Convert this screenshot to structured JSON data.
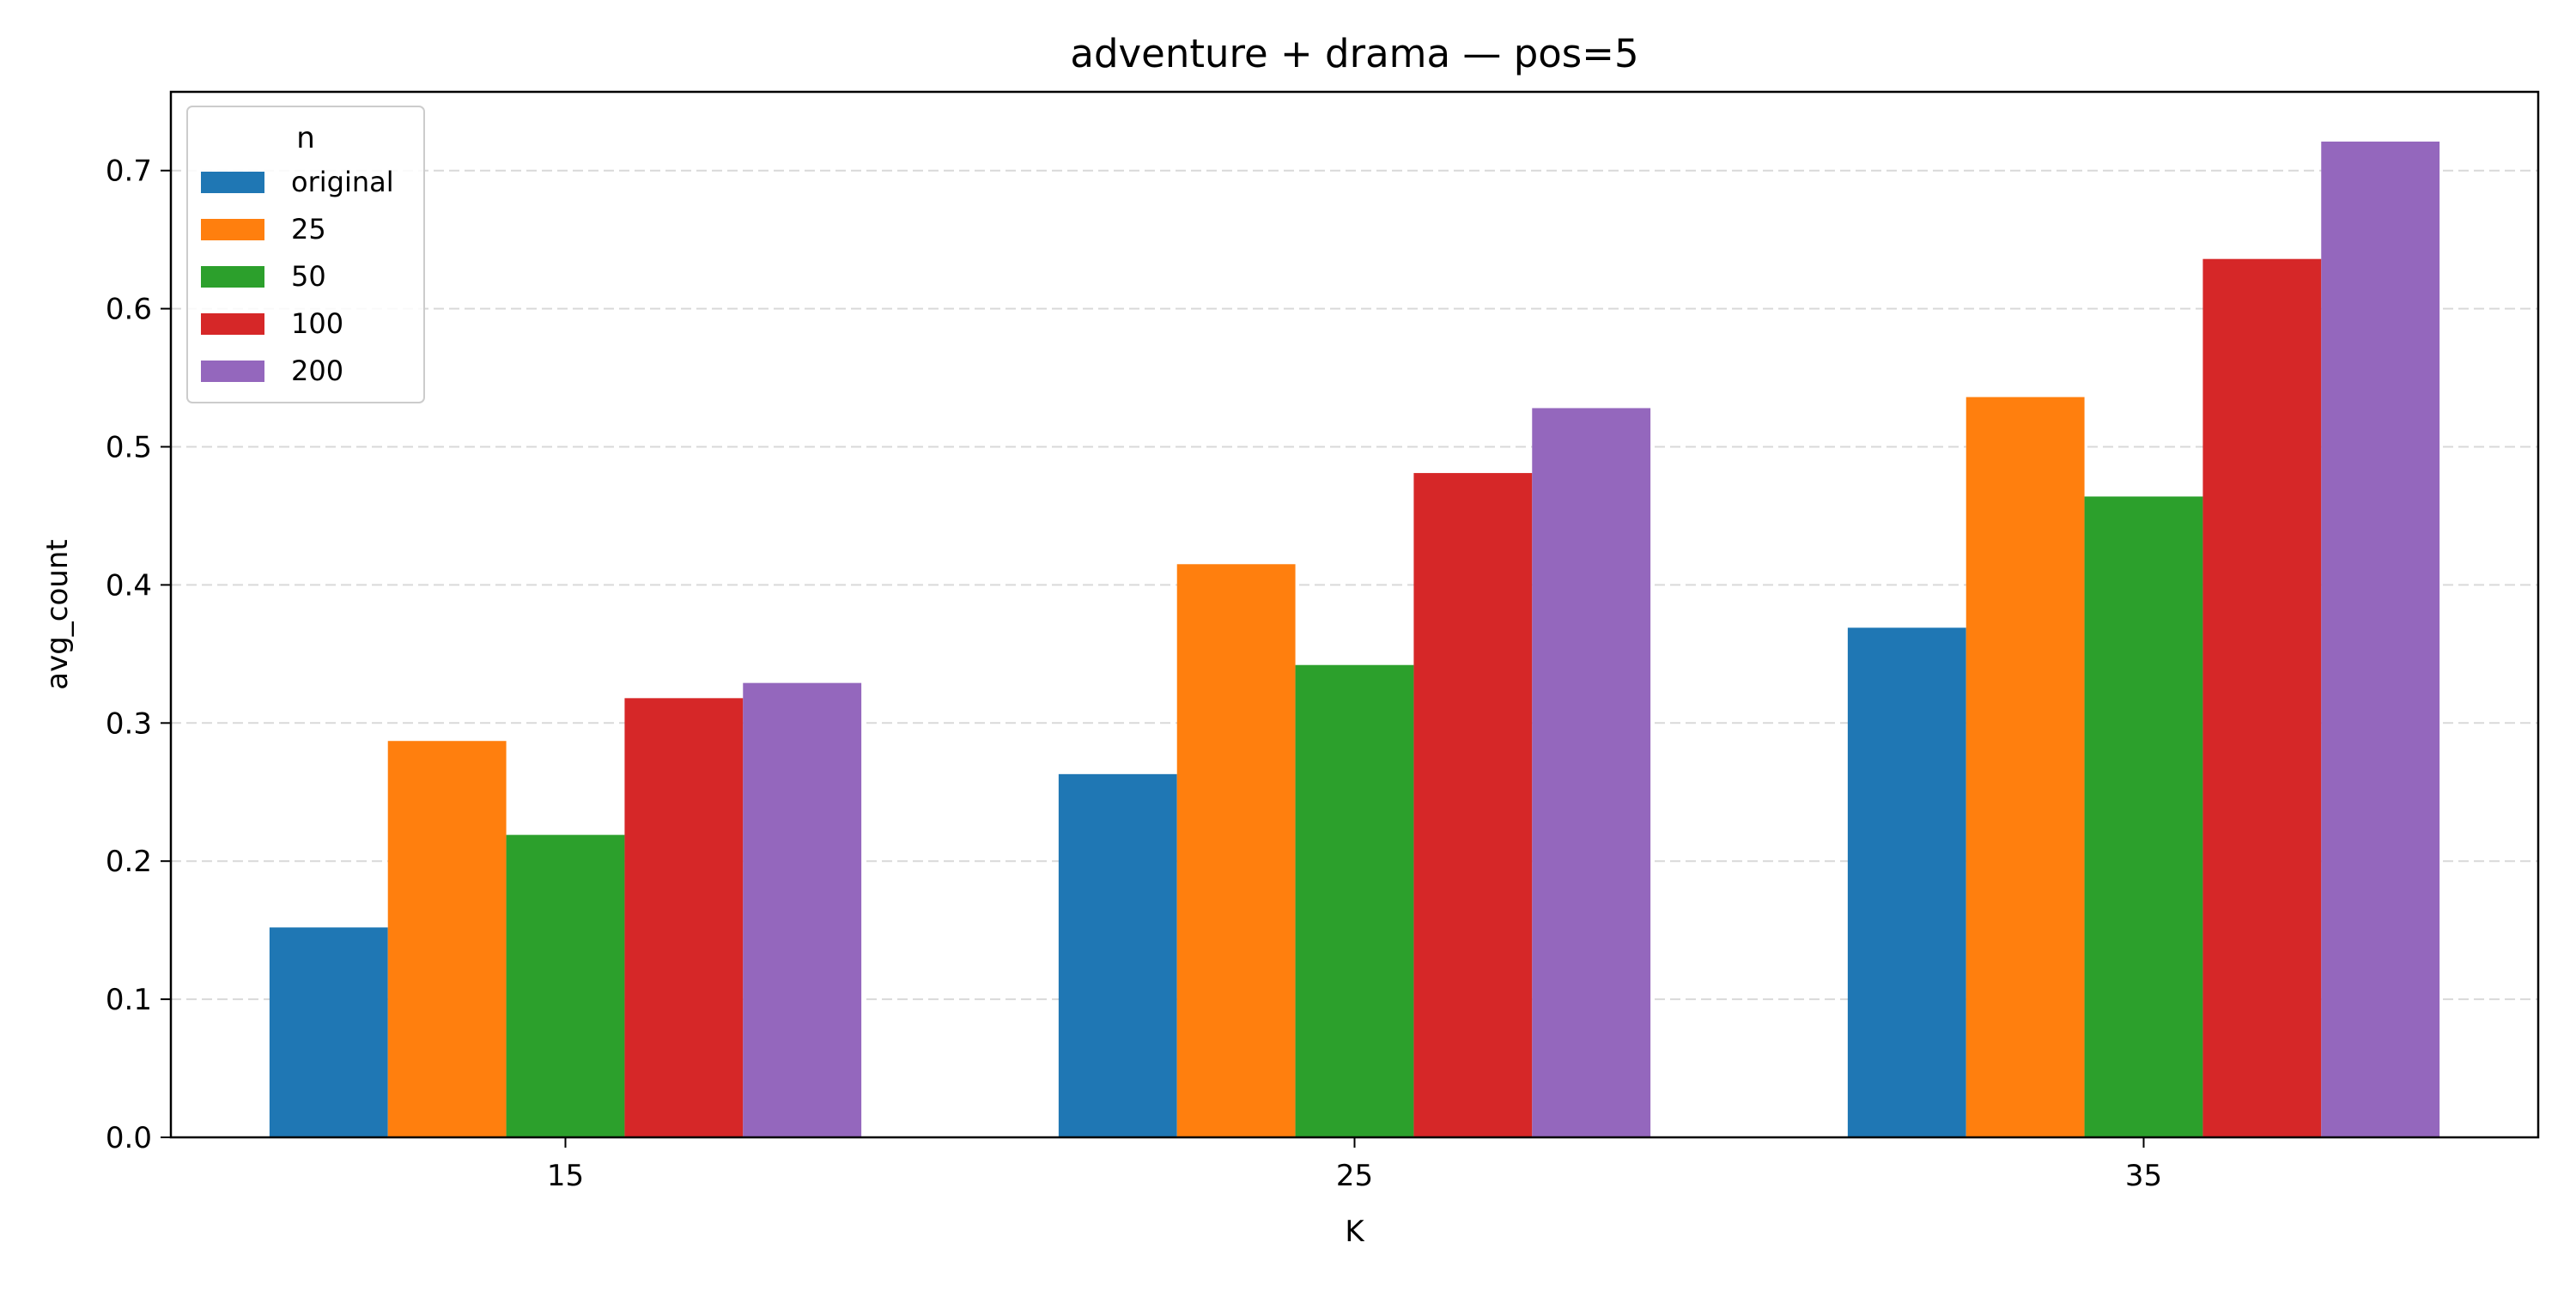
{
  "chart_data": {
    "type": "bar",
    "title": "adventure + drama — pos=5",
    "xlabel": "K",
    "ylabel": "avg_count",
    "categories": [
      "15",
      "25",
      "35"
    ],
    "ylim": [
      0,
      0.757
    ],
    "yticks": [
      0.0,
      0.1,
      0.2,
      0.3,
      0.4,
      0.5,
      0.6,
      0.7
    ],
    "ytick_labels": [
      "0.0",
      "0.1",
      "0.2",
      "0.3",
      "0.4",
      "0.5",
      "0.6",
      "0.7"
    ],
    "grid": "y-dashed",
    "legend": {
      "title": "n",
      "position": "top-left"
    },
    "series": [
      {
        "name": "original",
        "color": "#1f77b4",
        "values": [
          0.152,
          0.263,
          0.369
        ]
      },
      {
        "name": "25",
        "color": "#ff7f0e",
        "values": [
          0.287,
          0.415,
          0.536
        ]
      },
      {
        "name": "50",
        "color": "#2ca02c",
        "values": [
          0.219,
          0.342,
          0.464
        ]
      },
      {
        "name": "100",
        "color": "#d62728",
        "values": [
          0.318,
          0.481,
          0.636
        ]
      },
      {
        "name": "200",
        "color": "#9467bd",
        "values": [
          0.329,
          0.528,
          0.721
        ]
      }
    ]
  }
}
